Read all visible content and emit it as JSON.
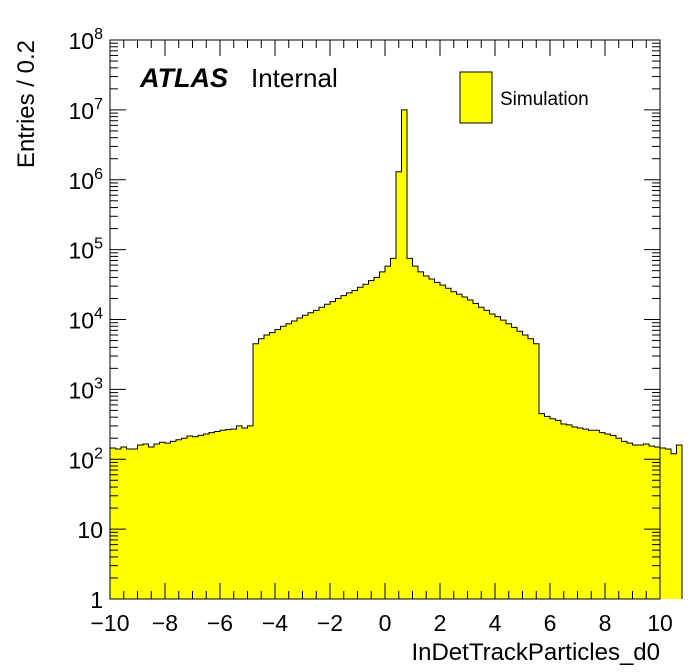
{
  "chart_data": {
    "type": "histogram",
    "xlabel": "InDetTrackParticles_d0",
    "ylabel": "Entries / 0.2",
    "xlim": [
      -10,
      10
    ],
    "ylim": [
      1,
      100000000
    ],
    "yscale": "log",
    "bin_width": 0.2,
    "bins_start": -10,
    "fill_color": "#ffff00",
    "line_color": "#000000",
    "x_ticks": [
      "−10",
      "−8",
      "−6",
      "−4",
      "−2",
      "0",
      "2",
      "4",
      "6",
      "8",
      "10"
    ],
    "x_tick_values": [
      -10,
      -8,
      -6,
      -4,
      -2,
      0,
      2,
      4,
      6,
      8,
      10
    ],
    "y_ticks": [
      {
        "value": 1,
        "base": "1",
        "exp": ""
      },
      {
        "value": 10,
        "base": "10",
        "exp": ""
      },
      {
        "value": 100,
        "base": "10",
        "exp": "2"
      },
      {
        "value": 1000,
        "base": "10",
        "exp": "3"
      },
      {
        "value": 10000,
        "base": "10",
        "exp": "4"
      },
      {
        "value": 100000,
        "base": "10",
        "exp": "5"
      },
      {
        "value": 1000000,
        "base": "10",
        "exp": "6"
      },
      {
        "value": 10000000,
        "base": "10",
        "exp": "7"
      },
      {
        "value": 100000000,
        "base": "10",
        "exp": "8"
      }
    ],
    "labels": {
      "experiment": "ATLAS",
      "status": "Internal"
    },
    "legend": {
      "entries": [
        {
          "name": "Simulation",
          "color": "#ffff00"
        }
      ],
      "position": "top-right"
    },
    "values": [
      145,
      140,
      150,
      140,
      140,
      160,
      165,
      150,
      165,
      175,
      170,
      180,
      190,
      200,
      215,
      210,
      220,
      230,
      240,
      250,
      260,
      265,
      270,
      300,
      280,
      300,
      4500,
      5300,
      6000,
      6500,
      7200,
      8000,
      8700,
      9500,
      10500,
      11500,
      12500,
      13500,
      15000,
      16500,
      18000,
      20000,
      22000,
      24000,
      26000,
      29000,
      32000,
      36000,
      40000,
      48000,
      58000,
      75000,
      1300000,
      10000000,
      75000,
      58000,
      48000,
      42000,
      38000,
      34000,
      31000,
      28000,
      25000,
      23000,
      21000,
      19000,
      17000,
      15000,
      13500,
      12000,
      11000,
      9800,
      8700,
      7700,
      6800,
      6000,
      5300,
      4500,
      450,
      410,
      380,
      360,
      320,
      310,
      290,
      280,
      270,
      260,
      260,
      240,
      230,
      220,
      200,
      180,
      170,
      160,
      160,
      165,
      155,
      150,
      145,
      140,
      120,
      160
    ]
  }
}
